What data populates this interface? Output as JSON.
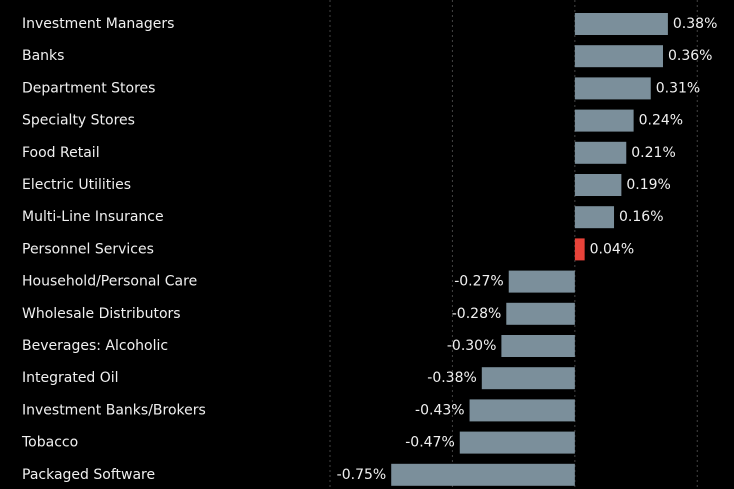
{
  "chart_data": {
    "type": "barh",
    "categories": [
      "Investment Managers",
      "Banks",
      "Department Stores",
      "Specialty Stores",
      "Food Retail",
      "Electric Utilities",
      "Multi-Line Insurance",
      "Personnel Services",
      "Household/Personal Care",
      "Wholesale Distributors",
      "Beverages: Alcoholic",
      "Integrated Oil",
      "Investment Banks/Brokers",
      "Tobacco",
      "Packaged Software"
    ],
    "values": [
      0.38,
      0.36,
      0.31,
      0.24,
      0.21,
      0.19,
      0.16,
      0.04,
      -0.27,
      -0.28,
      -0.3,
      -0.38,
      -0.43,
      -0.47,
      -0.75
    ],
    "value_labels": [
      "0.38%",
      "0.36%",
      "0.31%",
      "0.24%",
      "0.21%",
      "0.19%",
      "0.16%",
      "0.04%",
      "-0.27%",
      "-0.28%",
      "-0.30%",
      "-0.38%",
      "-0.43%",
      "-0.47%",
      "-0.75%"
    ],
    "colors": [
      "#7b8f9b",
      "#7b8f9b",
      "#7b8f9b",
      "#7b8f9b",
      "#7b8f9b",
      "#7b8f9b",
      "#7b8f9b",
      "#e8433a",
      "#7b8f9b",
      "#7b8f9b",
      "#7b8f9b",
      "#7b8f9b",
      "#7b8f9b",
      "#7b8f9b",
      "#7b8f9b"
    ],
    "xlim": [
      -1,
      0.65
    ],
    "xticks": [
      -1,
      -0.5,
      0,
      0.5
    ],
    "grid": true
  }
}
